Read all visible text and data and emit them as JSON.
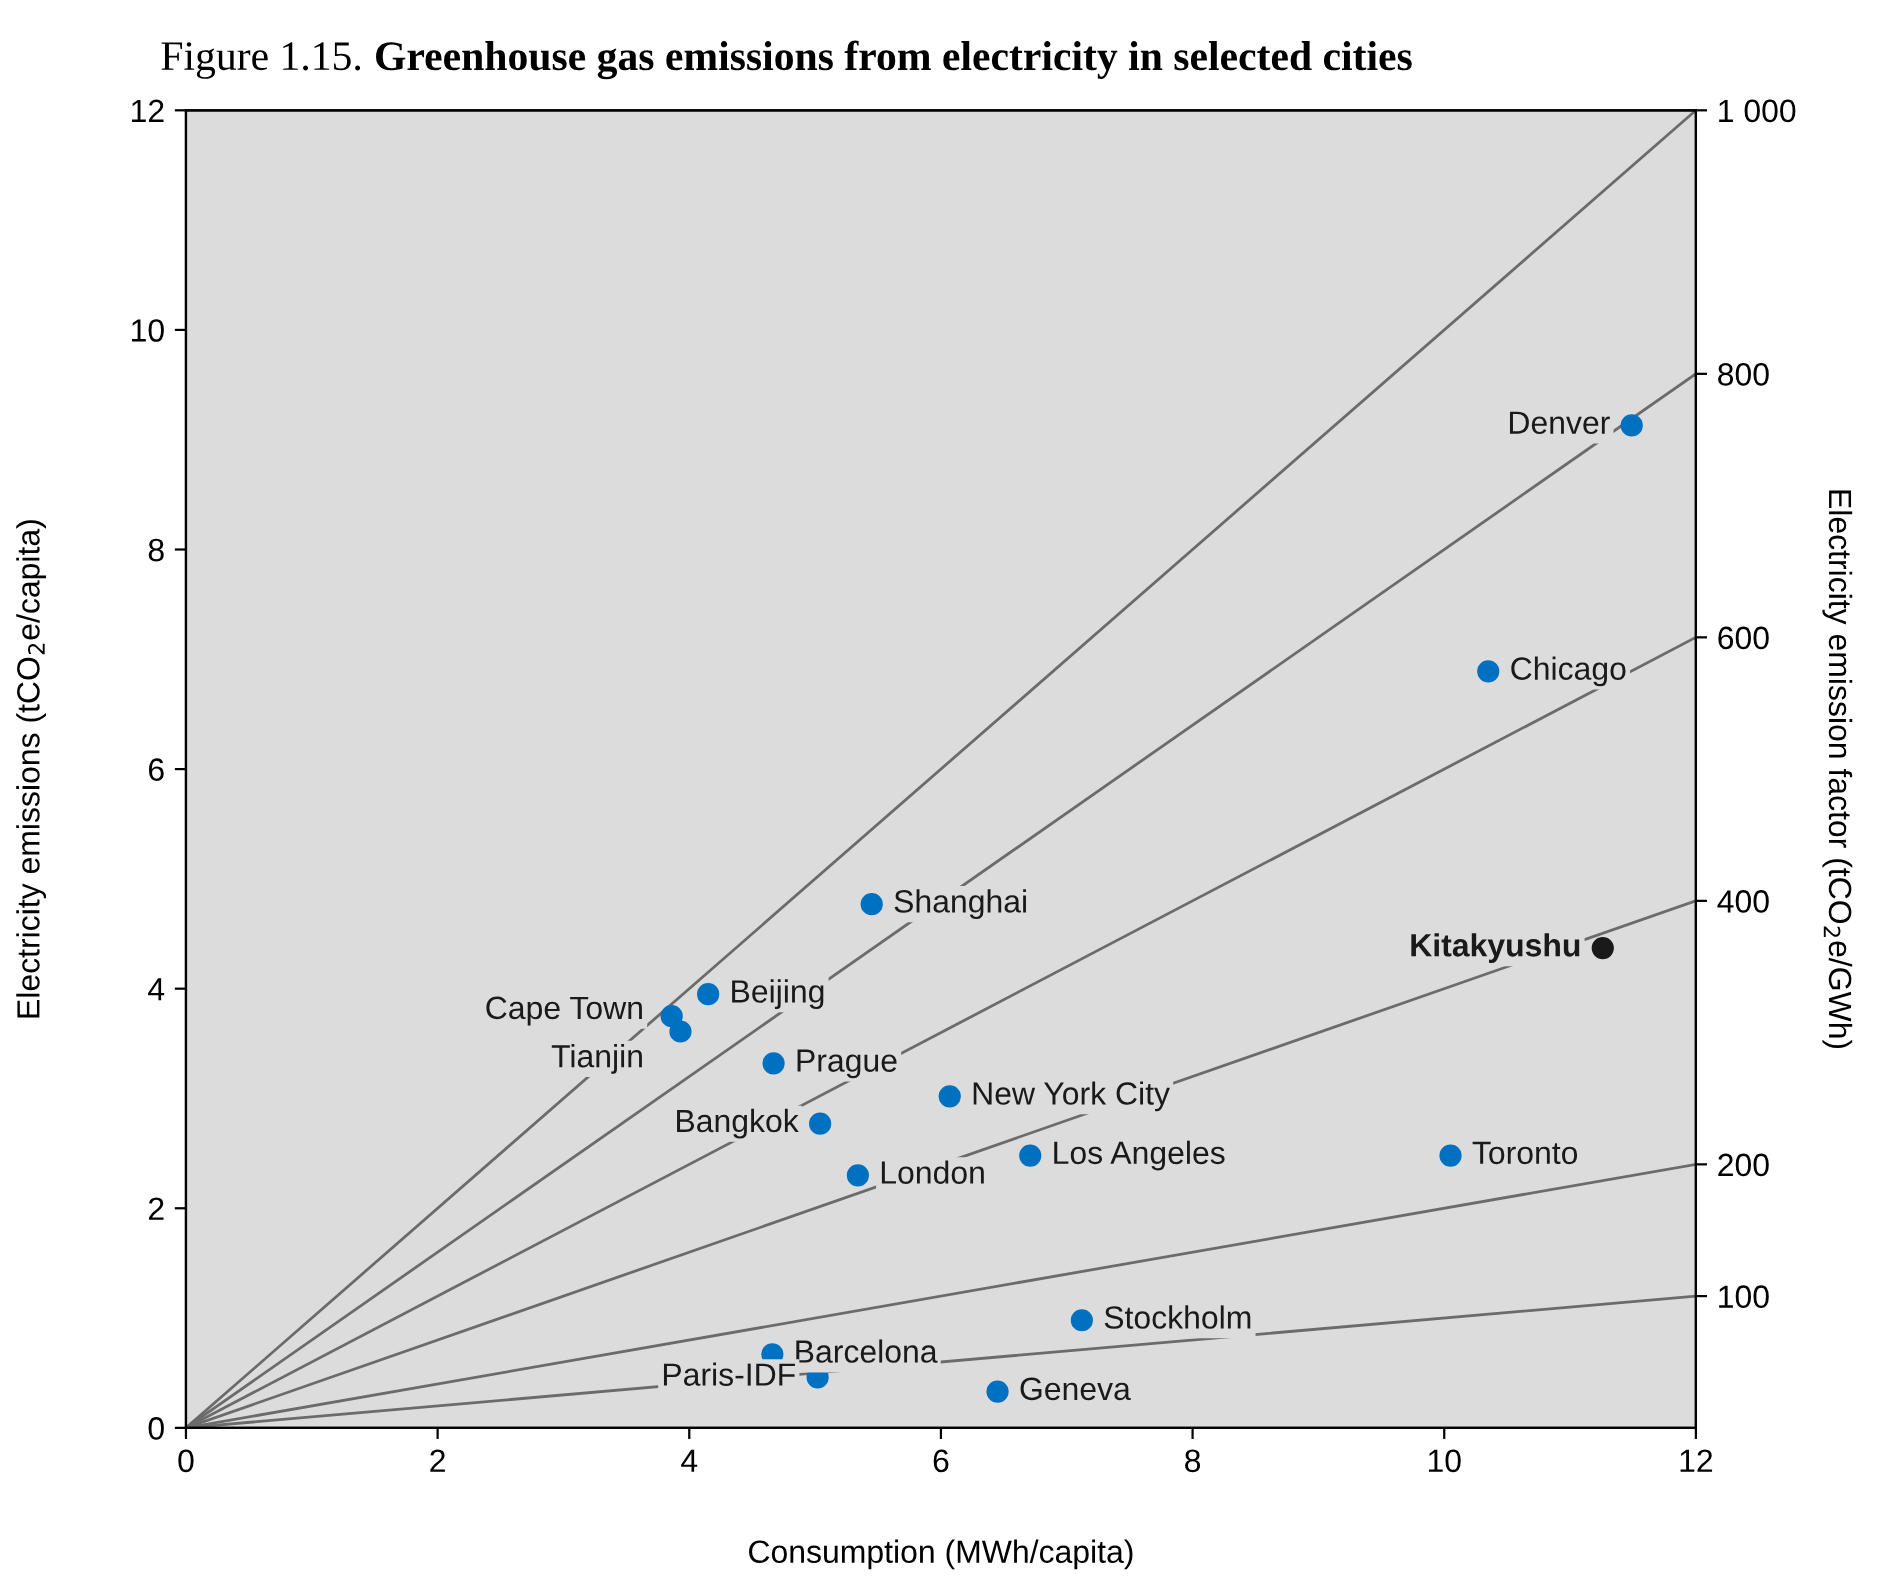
{
  "chart_data": {
    "type": "scatter",
    "title": "Figure 1.15. Greenhouse gas emissions from electricity in selected cities",
    "xlabel": "Consumption (MWh/capita)",
    "ylabel": "Electricity emissions (tCO$_{2}$e/capita)",
    "y2label": "Electricity emission factor (tCO$_{2}$e/GWh)",
    "xlim": [
      0,
      12
    ],
    "ylim": [
      0,
      12
    ],
    "xticks": [
      0,
      2,
      4,
      6,
      8,
      10,
      12
    ],
    "yticks": [
      0,
      2,
      4,
      6,
      8,
      10,
      12
    ],
    "y2lim": [
      0,
      1000
    ],
    "y2ticks": [
      100,
      200,
      400,
      600,
      800,
      {
        "value": 1000,
        "label": "1 000"
      }
    ],
    "grid": false,
    "legend": false,
    "marker": "circle",
    "series": [
      {
        "type": "line",
        "marker": "none",
        "color": "#6b6b6b",
        "x": [
          0,
          12
        ],
        "values": [
          0,
          12
        ]
      },
      {
        "type": "line",
        "marker": "none",
        "color": "#6b6b6b",
        "x": [
          0,
          12
        ],
        "values": [
          0,
          9.6
        ]
      },
      {
        "type": "line",
        "marker": "none",
        "color": "#6b6b6b",
        "x": [
          0,
          12
        ],
        "values": [
          0,
          7.2
        ]
      },
      {
        "type": "line",
        "marker": "none",
        "color": "#6b6b6b",
        "x": [
          0,
          12
        ],
        "values": [
          0,
          4.8
        ]
      },
      {
        "type": "line",
        "marker": "none",
        "color": "#6b6b6b",
        "x": [
          0,
          12
        ],
        "values": [
          0,
          2.4
        ]
      },
      {
        "type": "line",
        "marker": "none",
        "color": "#6b6b6b",
        "x": [
          0,
          12
        ],
        "values": [
          0,
          1.2
        ]
      },
      {
        "name": "Denver",
        "color": "#0070c0",
        "x": [
          11.49
        ],
        "values": [
          9.13
        ]
      },
      {
        "name": "Chicago",
        "color": "#0070c0",
        "x": [
          10.35
        ],
        "values": [
          6.89
        ]
      },
      {
        "name": "Kitakyushu",
        "color": "#1a1a1a",
        "x": [
          11.26
        ],
        "values": [
          4.37
        ]
      },
      {
        "name": "Shanghai",
        "color": "#0070c0",
        "x": [
          5.45
        ],
        "values": [
          4.77
        ]
      },
      {
        "name": "Beijing",
        "color": "#0070c0",
        "x": [
          4.15
        ],
        "values": [
          3.95
        ]
      },
      {
        "name": "Cape Town",
        "color": "#0070c0",
        "x": [
          3.86
        ],
        "values": [
          3.75
        ]
      },
      {
        "name": "Tianjin",
        "color": "#0070c0",
        "x": [
          3.93
        ],
        "values": [
          3.61
        ]
      },
      {
        "name": "Prague",
        "color": "#0070c0",
        "x": [
          4.67
        ],
        "values": [
          3.32
        ]
      },
      {
        "name": "New York City",
        "color": "#0070c0",
        "x": [
          6.07
        ],
        "values": [
          3.02
        ]
      },
      {
        "name": "Bangkok",
        "color": "#0070c0",
        "x": [
          5.04
        ],
        "values": [
          2.77
        ]
      },
      {
        "name": "Los Angeles",
        "color": "#0070c0",
        "x": [
          6.71
        ],
        "values": [
          2.48
        ]
      },
      {
        "name": "London",
        "color": "#0070c0",
        "x": [
          5.34
        ],
        "values": [
          2.3
        ]
      },
      {
        "name": "Toronto",
        "color": "#0070c0",
        "x": [
          10.05
        ],
        "values": [
          2.48
        ]
      },
      {
        "name": "Stockholm",
        "color": "#0070c0",
        "x": [
          7.12
        ],
        "values": [
          0.98
        ]
      },
      {
        "name": "Barcelona",
        "color": "#0070c0",
        "x": [
          4.66
        ],
        "values": [
          0.67
        ]
      },
      {
        "name": "Paris-IDF",
        "color": "#0070c0",
        "x": [
          5.02
        ],
        "values": [
          0.46
        ]
      },
      {
        "name": "Geneva",
        "color": "#0070c0",
        "x": [
          6.45
        ],
        "values": [
          0.33
        ]
      }
    ]
  }
}
